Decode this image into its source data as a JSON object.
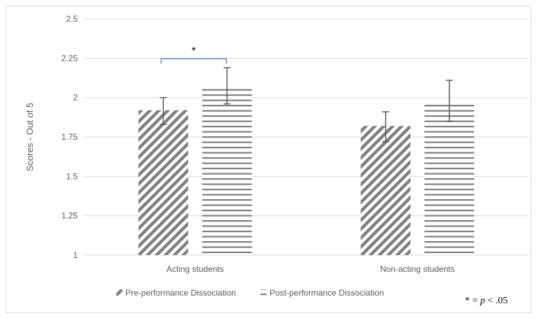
{
  "chart_data": {
    "type": "bar",
    "categories": [
      "Acting students",
      "Non-acting students"
    ],
    "series": [
      {
        "name": "Pre-performance Dissociation",
        "values": [
          1.92,
          1.82
        ],
        "error_low": [
          1.83,
          1.72
        ],
        "error_high": [
          2.0,
          1.91
        ],
        "pattern": "diagonal-hatch"
      },
      {
        "name": "Post-performance Dissociation",
        "values": [
          2.07,
          1.97
        ],
        "error_low": [
          1.96,
          1.85
        ],
        "error_high": [
          2.19,
          2.11
        ],
        "pattern": "horizontal-lines"
      }
    ],
    "ylabel": "Scores - Out of 5",
    "ylim": [
      1,
      2.5
    ],
    "yticks": [
      "1",
      "1.25",
      "1.5",
      "1.75",
      "2",
      "2.25",
      "2.5"
    ],
    "grid": true,
    "legend": "bottom",
    "annotation": {
      "text": "*",
      "between": [
        "Acting students: Pre",
        "Acting students: Post"
      ],
      "color": "#4472c4"
    },
    "note": {
      "prefix": "* = ",
      "italic": "p",
      "suffix": " < .05"
    },
    "colors": {
      "bars": "#7f7f7f",
      "error": "#595959",
      "grid": "#d9d9d9"
    }
  }
}
